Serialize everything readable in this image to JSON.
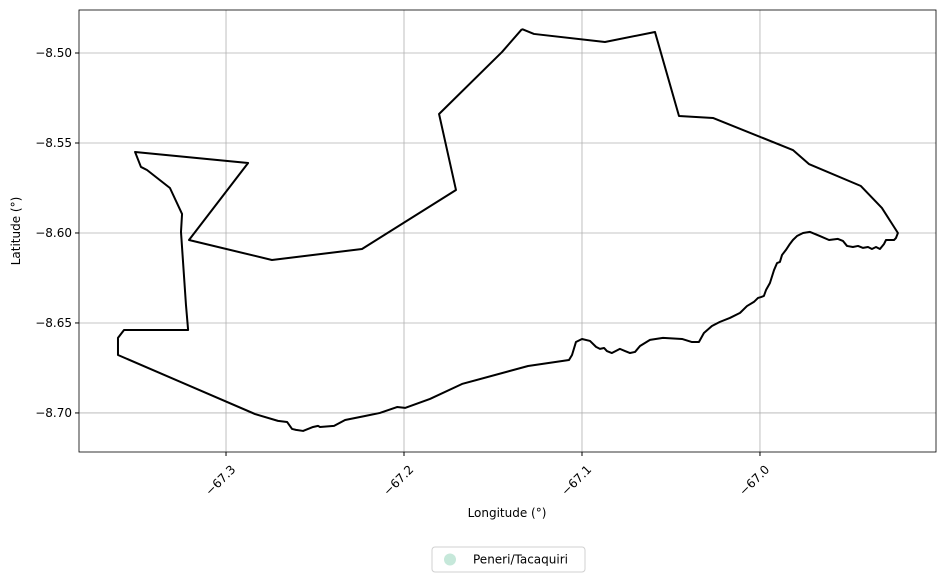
{
  "chart_data": {
    "type": "line",
    "xlabel": "Longitude (°)",
    "ylabel": "Latitude (°)",
    "x": [
      -67.1337,
      -67.127,
      -67.0871,
      -67.059,
      -67.0455,
      -67.0264,
      -66.9815,
      -66.9725,
      -66.9433,
      -66.9315,
      -66.9225,
      -66.9236,
      -66.9247,
      -66.9292,
      -66.9303,
      -66.9326,
      -66.9348,
      -66.9371,
      -66.9393,
      -66.9421,
      -66.9449,
      -66.9478,
      -66.9511,
      -66.9534,
      -66.9562,
      -66.9612,
      -66.9663,
      -66.9719,
      -66.9758,
      -66.9792,
      -66.9815,
      -66.9832,
      -66.9854,
      -66.9876,
      -66.9888,
      -66.9904,
      -66.9921,
      -66.9944,
      -66.9966,
      -66.9978,
      -66.9994,
      -67.0011,
      -67.0034,
      -67.0073,
      -67.0112,
      -67.0169,
      -67.0225,
      -67.027,
      -67.0315,
      -67.0343,
      -67.0382,
      -67.0438,
      -67.0545,
      -67.0618,
      -67.0674,
      -67.0702,
      -67.073,
      -67.0758,
      -67.0787,
      -67.0832,
      -67.086,
      -67.0876,
      -67.0899,
      -67.0921,
      -67.0955,
      -67.1,
      -67.1034,
      -67.1056,
      -67.1073,
      -67.1303,
      -67.1674,
      -67.1854,
      -67.1994,
      -67.2039,
      -67.2135,
      -67.2219,
      -67.2331,
      -67.2393,
      -67.2472,
      -67.2483,
      -67.2511,
      -67.2567,
      -67.2607,
      -67.2629,
      -67.2657,
      -67.2708,
      -67.2837,
      -67.3607,
      -67.3607,
      -67.3573,
      -67.3213,
      -67.3225,
      -67.3253,
      -67.3247,
      -67.3315,
      -67.3444,
      -67.3478,
      -67.3511,
      -67.2876,
      -67.3208,
      -67.2742,
      -67.2236,
      -67.1708,
      -67.1803,
      -67.1449,
      -67.1337
    ],
    "series": [
      {
        "name": "Peneri/Tacaquiri",
        "color": "#000000",
        "values": [
          -8.4867,
          -8.4894,
          -8.4939,
          -8.4883,
          -8.535,
          -8.5361,
          -8.5539,
          -8.5617,
          -8.5739,
          -8.5861,
          -8.6,
          -8.6028,
          -8.6039,
          -8.6039,
          -8.6061,
          -8.6089,
          -8.6078,
          -8.6089,
          -8.6078,
          -8.6083,
          -8.6072,
          -8.6078,
          -8.6072,
          -8.6044,
          -8.6033,
          -8.6039,
          -8.6017,
          -8.5994,
          -8.6,
          -8.6017,
          -8.6039,
          -8.6061,
          -8.6094,
          -8.6122,
          -8.6161,
          -8.6167,
          -8.6206,
          -8.6278,
          -8.6317,
          -8.635,
          -8.6356,
          -8.6361,
          -8.6383,
          -8.6406,
          -8.6444,
          -8.6472,
          -8.6494,
          -8.6517,
          -8.6556,
          -8.6606,
          -8.6606,
          -8.6589,
          -8.6583,
          -8.6594,
          -8.6628,
          -8.6661,
          -8.6667,
          -8.6656,
          -8.6644,
          -8.6667,
          -8.6656,
          -8.6639,
          -8.6644,
          -8.6633,
          -8.66,
          -8.6589,
          -8.6606,
          -8.6678,
          -8.6706,
          -8.6739,
          -8.6839,
          -8.6922,
          -8.6972,
          -8.6967,
          -8.7,
          -8.7017,
          -8.7039,
          -8.7072,
          -8.7078,
          -8.7072,
          -8.7078,
          -8.71,
          -8.7094,
          -8.7089,
          -8.705,
          -8.7044,
          -8.7006,
          -8.6678,
          -8.6583,
          -8.6539,
          -8.6539,
          -8.64,
          -8.5994,
          -8.5894,
          -8.575,
          -8.565,
          -8.5633,
          -8.555,
          -8.5611,
          -8.6039,
          -8.615,
          -8.6089,
          -8.5761,
          -8.5339,
          -8.4994,
          -8.4867
        ]
      }
    ],
    "legend_marker_color": "#c6e8da",
    "xlim": [
      -67.3826,
      -66.9011
    ],
    "ylim": [
      -8.7217,
      -8.4761
    ],
    "xticks": [
      {
        "value": -67.3,
        "label": "−67.3"
      },
      {
        "value": -67.2,
        "label": "−67.2"
      },
      {
        "value": -67.1,
        "label": "−67.1"
      },
      {
        "value": -67.0,
        "label": "−67.0"
      }
    ],
    "yticks": [
      {
        "value": -8.7,
        "label": "−8.70"
      },
      {
        "value": -8.65,
        "label": "−8.65"
      },
      {
        "value": -8.6,
        "label": "−8.60"
      },
      {
        "value": -8.55,
        "label": "−8.55"
      },
      {
        "value": -8.5,
        "label": "−8.50"
      }
    ],
    "grid": true,
    "legend_position": "bottom"
  }
}
